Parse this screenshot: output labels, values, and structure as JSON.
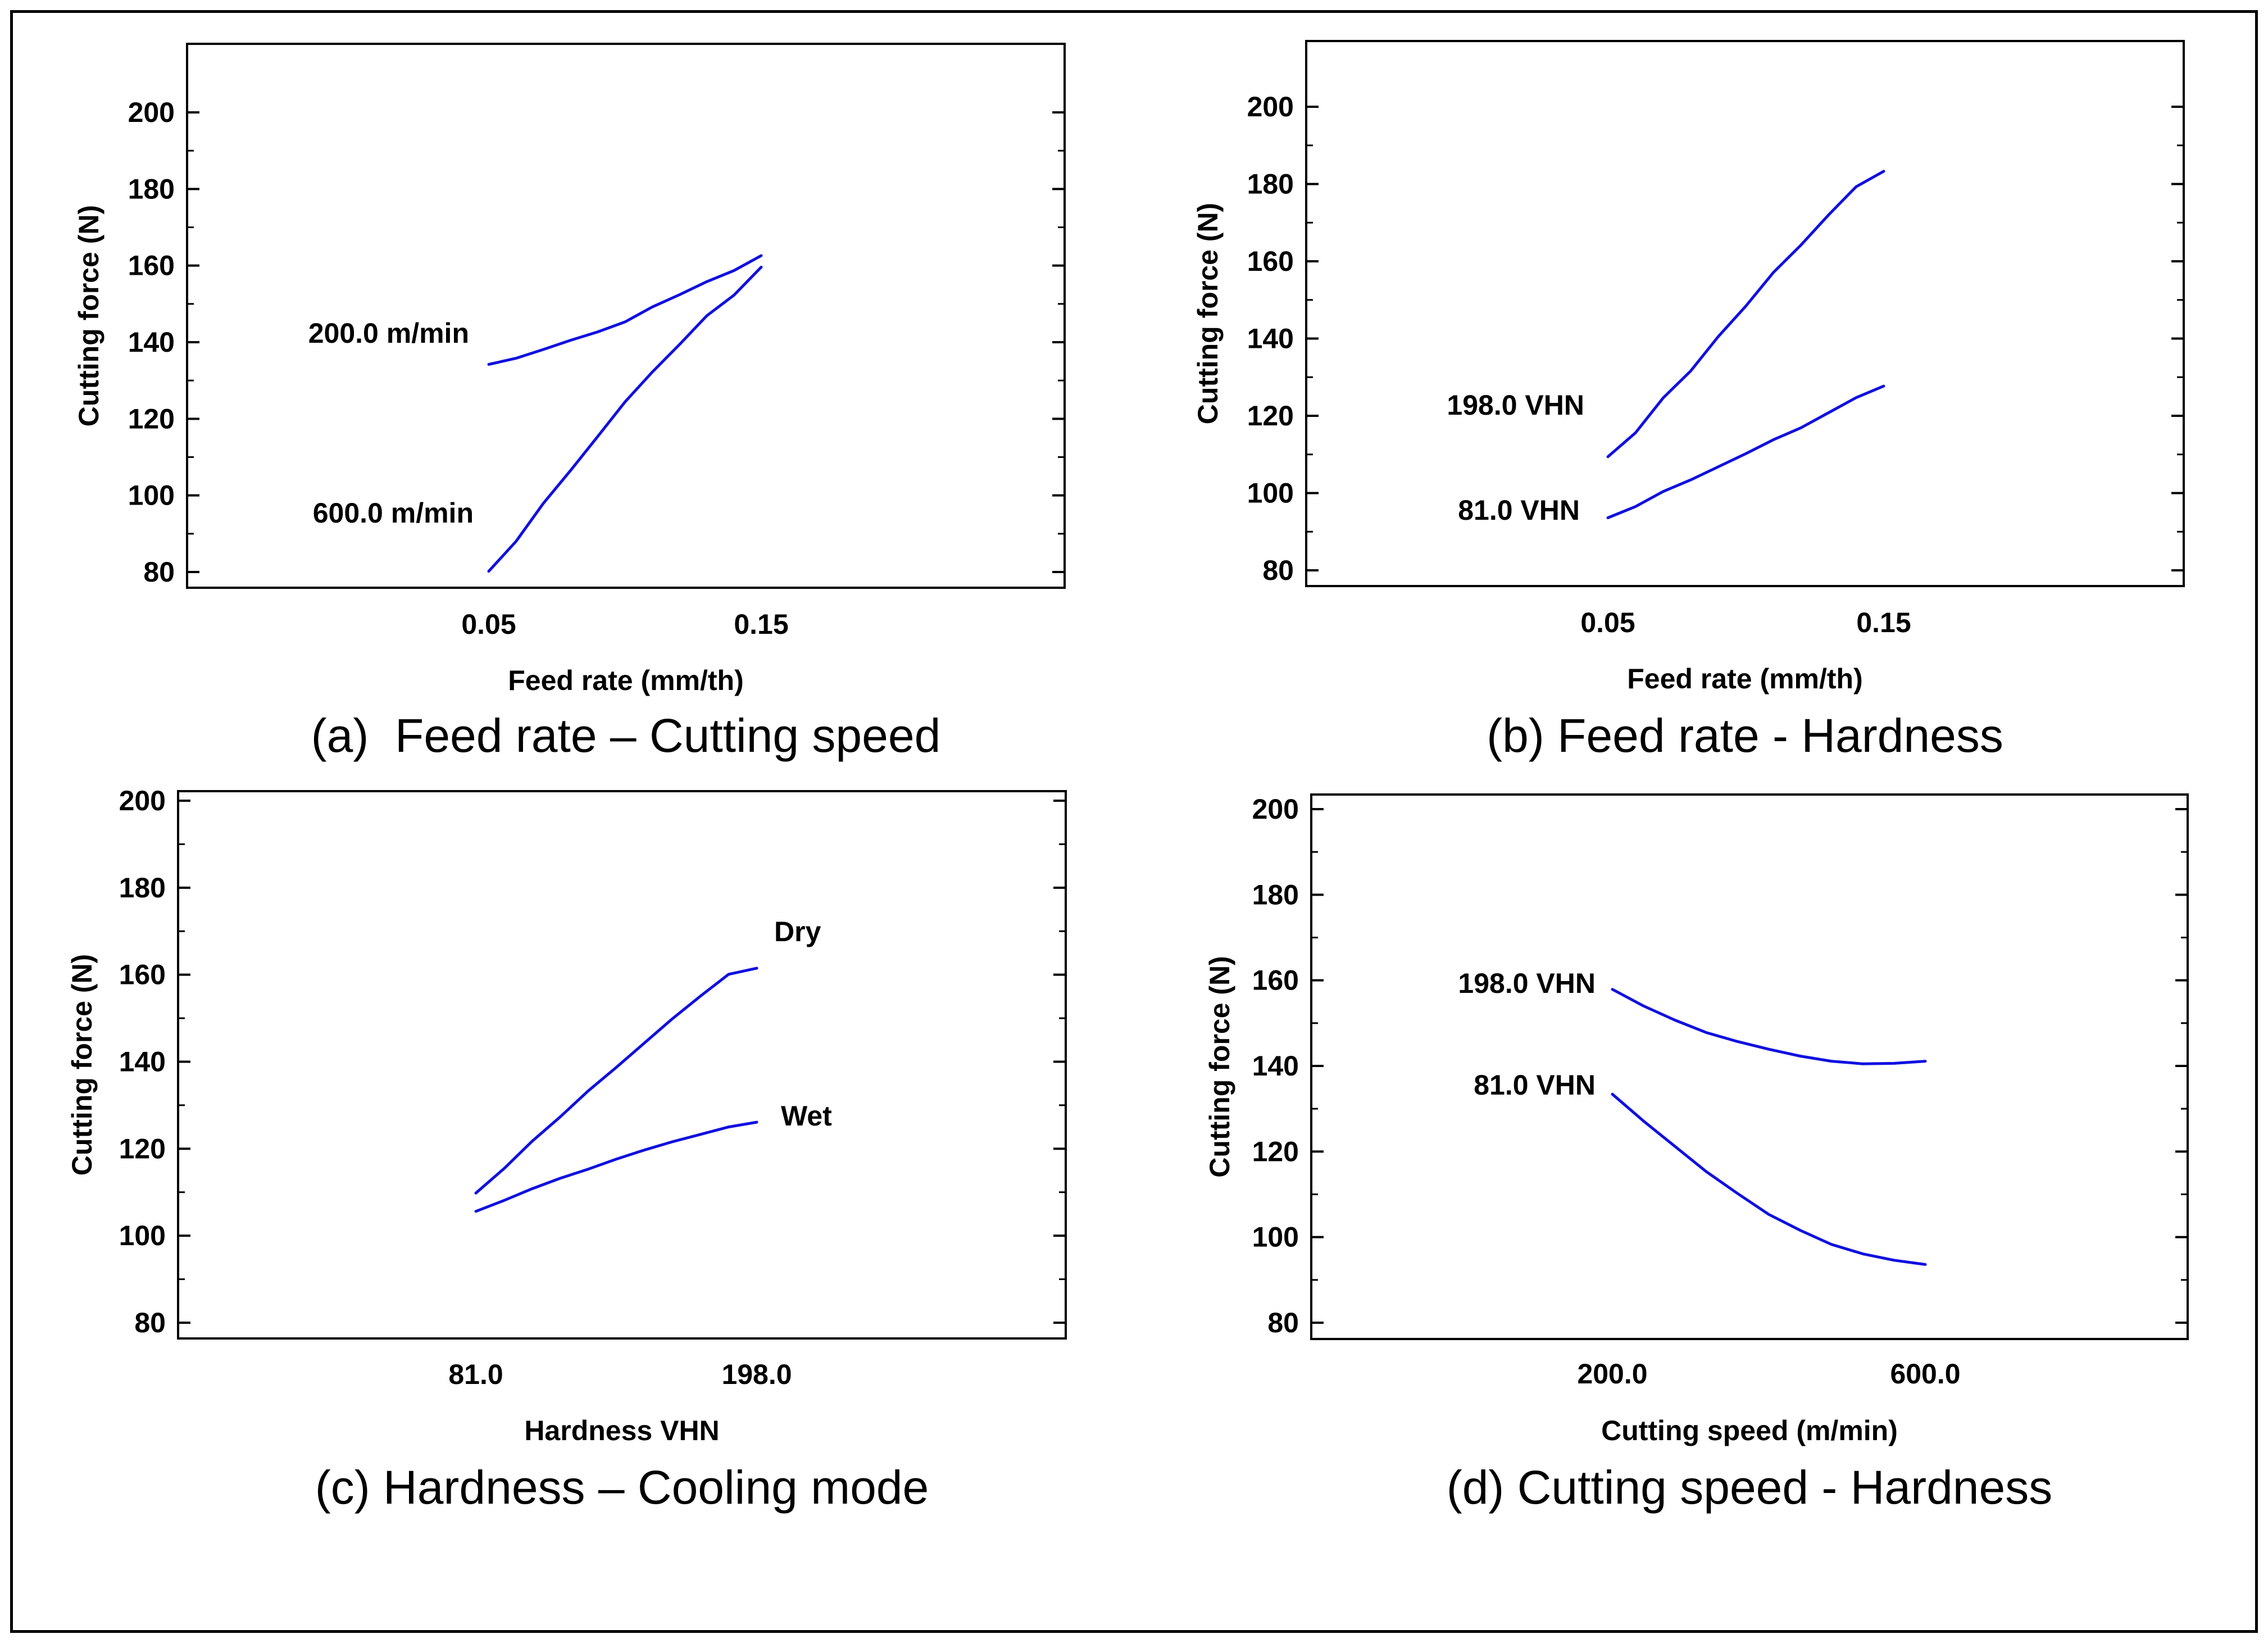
{
  "chart_data": [
    {
      "type": "line",
      "caption": "(a)  Feed rate – Cutting speed",
      "xlabel": "Feed rate (mm/th)",
      "ylabel": "Cutting force (N)",
      "xlim": [
        0.05,
        0.15
      ],
      "ylim": [
        80,
        200
      ],
      "xticks": [
        "0.05",
        "0.15"
      ],
      "yticks": [
        "200",
        "180",
        "160",
        "140",
        "120",
        "100",
        "80"
      ],
      "grid": false,
      "color": "#1010e0",
      "series": [
        {
          "name": "200.0 m/min",
          "x": [
            0.05,
            0.06,
            0.07,
            0.08,
            0.09,
            0.1,
            0.11,
            0.12,
            0.13,
            0.14,
            0.15
          ],
          "y": [
            134.2,
            135.8,
            138.1,
            140.5,
            142.7,
            145.3,
            149.2,
            152.4,
            155.8,
            158.7,
            162.6
          ]
        },
        {
          "name": "600.0 m/min",
          "x": [
            0.05,
            0.06,
            0.07,
            0.08,
            0.09,
            0.1,
            0.11,
            0.12,
            0.13,
            0.14,
            0.15
          ],
          "y": [
            80.2,
            88.0,
            97.9,
            106.5,
            115.4,
            124.4,
            132.2,
            139.4,
            146.9,
            152.3,
            159.6
          ]
        }
      ]
    },
    {
      "type": "line",
      "caption": "(b) Feed rate - Hardness",
      "xlabel": "Feed rate (mm/th)",
      "ylabel": "Cutting force (N)",
      "xlim": [
        0.05,
        0.15
      ],
      "ylim": [
        80,
        200
      ],
      "xticks": [
        "0.05",
        "0.15"
      ],
      "yticks": [
        "200",
        "180",
        "160",
        "140",
        "120",
        "100",
        "80"
      ],
      "grid": false,
      "color": "#1010e0",
      "series": [
        {
          "name": "198.0 VHN",
          "x": [
            0.05,
            0.06,
            0.07,
            0.08,
            0.09,
            0.1,
            0.11,
            0.12,
            0.13,
            0.14,
            0.15
          ],
          "y": [
            109.4,
            115.6,
            124.6,
            131.6,
            140.5,
            148.4,
            157.1,
            164.2,
            172.0,
            179.3,
            183.3
          ]
        },
        {
          "name": "81.0 VHN",
          "x": [
            0.05,
            0.06,
            0.07,
            0.08,
            0.09,
            0.1,
            0.11,
            0.12,
            0.13,
            0.14,
            0.15
          ],
          "y": [
            93.6,
            96.5,
            100.4,
            103.4,
            106.8,
            110.2,
            113.8,
            116.9,
            120.8,
            124.7,
            127.7
          ]
        }
      ]
    },
    {
      "type": "line",
      "caption": "(c) Hardness – Cooling mode",
      "xlabel": "Hardness VHN",
      "ylabel": "Cutting force (N)",
      "xlim": [
        81.0,
        198.0
      ],
      "ylim": [
        80,
        200
      ],
      "xticks": [
        "81.0",
        "198.0"
      ],
      "yticks": [
        "200",
        "180",
        "160",
        "140",
        "120",
        "100",
        "80"
      ],
      "grid": false,
      "color": "#1010e0",
      "series": [
        {
          "name": "Dry",
          "x": [
            81.0,
            92.7,
            104.4,
            116.1,
            127.8,
            139.5,
            151.2,
            162.9,
            174.6,
            186.3,
            198.0
          ],
          "y": [
            109.8,
            115.4,
            121.7,
            127.3,
            133.3,
            138.7,
            144.3,
            149.9,
            155.1,
            160.1,
            161.5
          ]
        },
        {
          "name": "Wet",
          "x": [
            81.0,
            92.7,
            104.4,
            116.1,
            127.8,
            139.5,
            151.2,
            162.9,
            174.6,
            186.3,
            198.0
          ],
          "y": [
            105.6,
            108.1,
            110.8,
            113.2,
            115.3,
            117.6,
            119.7,
            121.6,
            123.3,
            125.0,
            126.1
          ]
        }
      ]
    },
    {
      "type": "line",
      "caption": "(d) Cutting speed - Hardness",
      "xlabel": "Cutting speed (m/min)",
      "ylabel": "Cutting force (N)",
      "xlim": [
        200.0,
        600.0
      ],
      "ylim": [
        80,
        200
      ],
      "xticks": [
        "200.0",
        "600.0"
      ],
      "yticks": [
        "200",
        "180",
        "160",
        "140",
        "120",
        "100",
        "80"
      ],
      "grid": false,
      "color": "#1010e0",
      "series": [
        {
          "name": "198.0 VHN",
          "x": [
            200,
            240,
            280,
            320,
            360,
            400,
            440,
            480,
            520,
            560,
            600
          ],
          "y": [
            157.9,
            154.0,
            150.7,
            147.8,
            145.7,
            143.9,
            142.3,
            141.1,
            140.5,
            140.6,
            141.1
          ]
        },
        {
          "name": "81.0 VHN",
          "x": [
            200,
            240,
            280,
            320,
            360,
            400,
            440,
            480,
            520,
            560,
            600
          ],
          "y": [
            133.4,
            127.1,
            121.2,
            115.3,
            110.2,
            105.3,
            101.6,
            98.3,
            96.1,
            94.6,
            93.6
          ]
        }
      ]
    }
  ]
}
